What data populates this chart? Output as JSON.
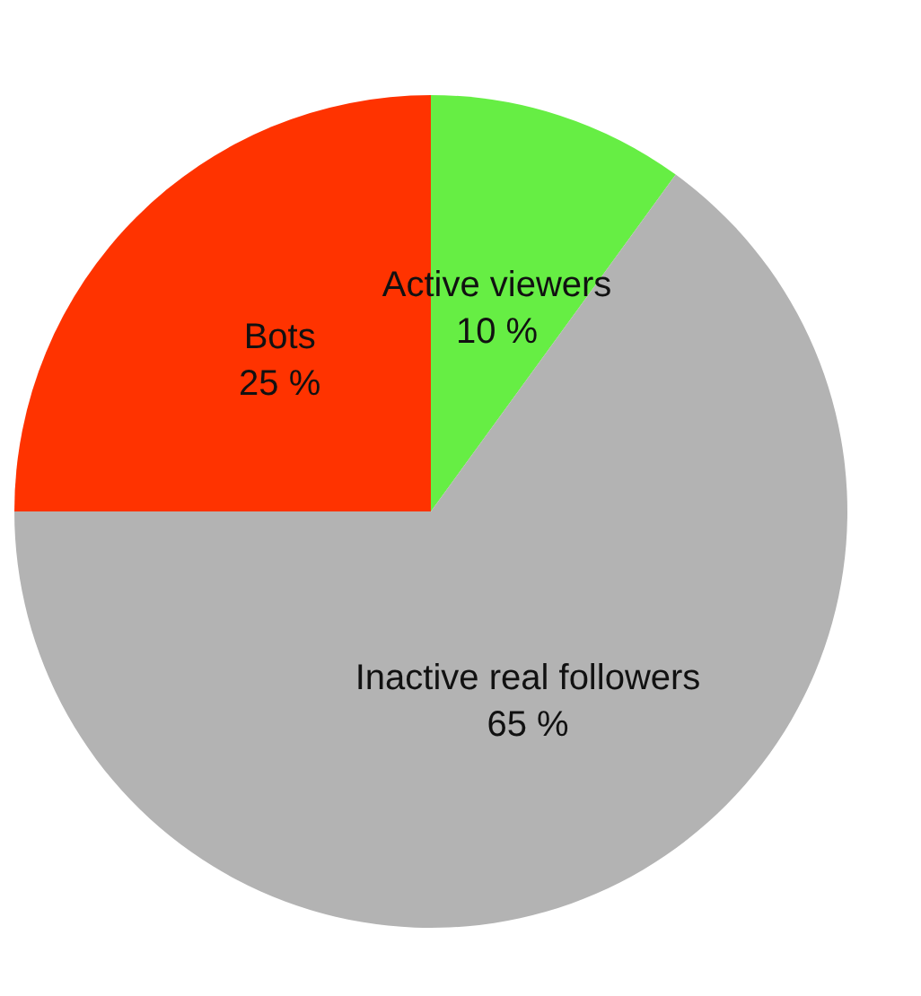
{
  "chart_data": {
    "type": "pie",
    "categories": [
      "Active viewers",
      "Inactive real followers",
      "Bots"
    ],
    "values": [
      10,
      65,
      25
    ],
    "colors": [
      "#66ee44",
      "#b3b3b3",
      "#ff3300"
    ],
    "value_labels": [
      "10 %",
      "65 %",
      "25 %"
    ]
  }
}
